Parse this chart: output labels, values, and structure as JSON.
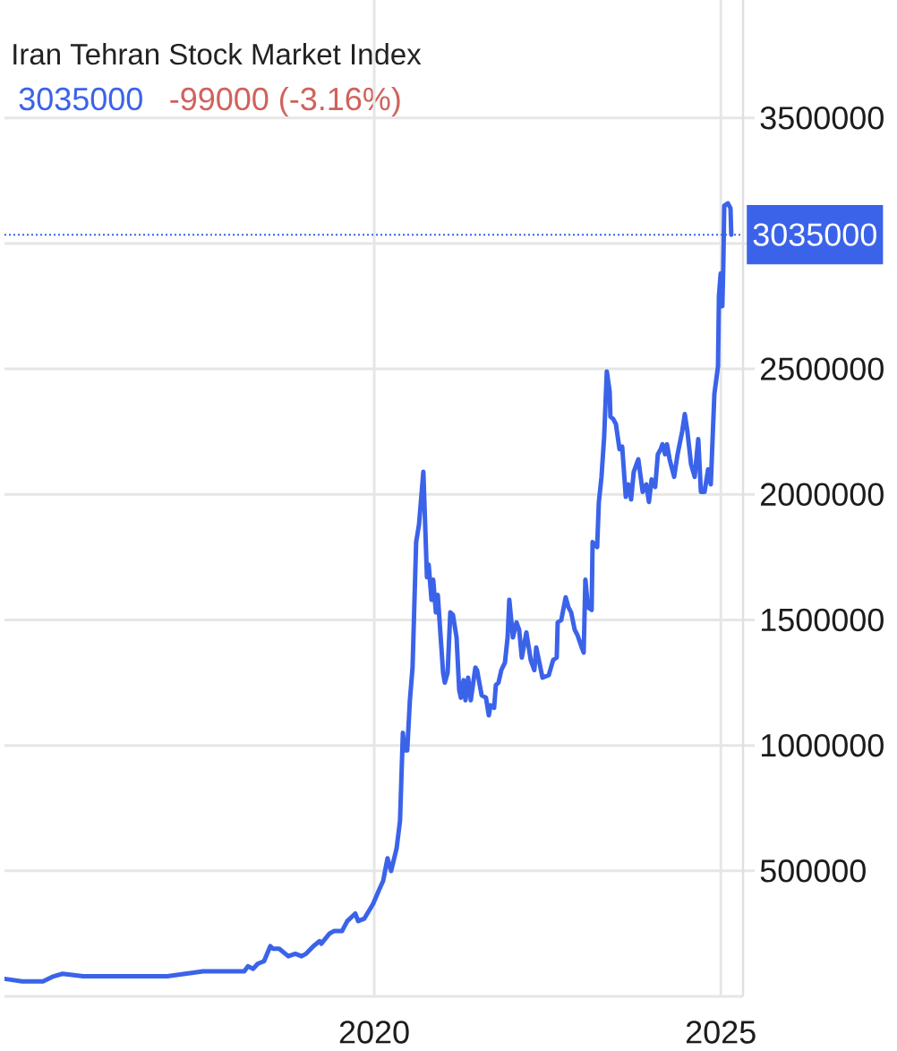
{
  "chart_data": {
    "type": "line",
    "title": "Iran Tehran Stock Market Index",
    "annotations": [
      "3035000",
      "-99000 (-3.16%)"
    ],
    "color": "#3b63e9",
    "x": [
      "2014-08-31",
      "2014-12-03",
      "2015-03-22",
      "2015-05-17",
      "2015-07-03",
      "2015-10-20",
      "2015-12-25",
      "2016-07-15",
      "2017-01-05",
      "2017-07-13",
      "2017-09-13",
      "2018-01-18",
      "2018-02-15",
      "2018-03-06",
      "2018-04-03",
      "2018-04-27",
      "2018-05-30",
      "2018-07-02",
      "2018-07-16",
      "2018-08-18",
      "2018-10-05",
      "2018-11-11",
      "2018-12-14",
      "2019-01-07",
      "2019-02-14",
      "2019-03-19",
      "2019-03-28",
      "2019-05-10",
      "2019-06-02",
      "2019-07-15",
      "2019-08-12",
      "2019-09-23",
      "2019-10-08",
      "2019-11-10",
      "2019-12-27",
      "2020-01-24",
      "2020-02-17",
      "2020-03-11",
      "2020-03-30",
      "2020-04-28",
      "2020-05-16",
      "2020-05-31",
      "2020-06-09",
      "2020-06-23",
      "2020-07-07",
      "2020-07-21",
      "2020-08-09",
      "2020-08-24",
      "2020-09-16",
      "2020-10-05",
      "2020-10-14",
      "2020-10-29",
      "2020-11-07",
      "2020-11-21",
      "2020-12-01",
      "2020-12-29",
      "2021-01-07",
      "2021-01-22",
      "2021-02-05",
      "2021-02-19",
      "2021-03-10",
      "2021-03-24",
      "2021-04-02",
      "2021-04-16",
      "2021-04-26",
      "2021-05-10",
      "2021-05-24",
      "2021-06-17",
      "2021-06-26",
      "2021-07-20",
      "2021-08-12",
      "2021-08-27",
      "2021-09-05",
      "2021-09-24",
      "2021-10-03",
      "2021-10-17",
      "2021-11-01",
      "2021-11-20",
      "2021-12-04",
      "2021-12-13",
      "2022-01-01",
      "2022-01-20",
      "2022-02-03",
      "2022-02-17",
      "2022-03-13",
      "2022-04-05",
      "2022-04-24",
      "2022-05-04",
      "2022-06-06",
      "2022-07-09",
      "2022-08-01",
      "2022-08-20",
      "2022-08-25",
      "2022-09-13",
      "2022-10-06",
      "2022-10-21",
      "2022-11-04",
      "2022-11-23",
      "2022-12-07",
      "2022-12-30",
      "2023-01-09",
      "2023-01-18",
      "2023-02-01",
      "2023-02-20",
      "2023-02-25",
      "2023-03-21",
      "2023-03-30",
      "2023-04-13",
      "2023-04-27",
      "2023-05-11",
      "2023-05-26",
      "2023-05-30",
      "2023-06-14",
      "2023-06-28",
      "2023-07-17",
      "2023-07-31",
      "2023-08-19",
      "2023-09-02",
      "2023-09-16",
      "2023-09-30",
      "2023-10-24",
      "2023-11-16",
      "2023-12-05",
      "2023-12-19",
      "2024-01-02",
      "2024-01-21",
      "2024-02-04",
      "2024-02-19",
      "2024-02-28",
      "2024-03-13",
      "2024-03-23",
      "2024-04-06",
      "2024-04-30",
      "2024-05-18",
      "2024-06-11",
      "2024-06-25",
      "2024-07-09",
      "2024-07-28",
      "2024-08-16",
      "2024-09-04",
      "2024-09-18",
      "2024-10-07",
      "2024-10-26",
      "2024-11-09",
      "2024-11-28",
      "2024-12-17",
      "2024-12-22",
      "2024-12-31",
      "2025-01-09",
      "2025-01-14",
      "2025-01-19",
      "2025-02-07",
      "2025-02-21",
      "2025-02-25"
    ],
    "values": [
      70000,
      60000,
      60000,
      80000,
      90000,
      80000,
      80000,
      80000,
      80000,
      100000,
      100000,
      100000,
      100000,
      120000,
      110000,
      130000,
      140000,
      200000,
      190000,
      190000,
      160000,
      170000,
      160000,
      170000,
      200000,
      220000,
      210000,
      250000,
      260000,
      260000,
      300000,
      330000,
      300000,
      310000,
      370000,
      420000,
      460000,
      550000,
      500000,
      590000,
      700000,
      1050000,
      980000,
      980000,
      1180000,
      1310000,
      1810000,
      1880000,
      2090000,
      1670000,
      1720000,
      1580000,
      1660000,
      1530000,
      1600000,
      1290000,
      1250000,
      1290000,
      1530000,
      1520000,
      1430000,
      1220000,
      1190000,
      1260000,
      1180000,
      1270000,
      1180000,
      1310000,
      1300000,
      1200000,
      1190000,
      1120000,
      1160000,
      1150000,
      1240000,
      1250000,
      1300000,
      1330000,
      1430000,
      1580000,
      1430000,
      1490000,
      1460000,
      1350000,
      1450000,
      1340000,
      1300000,
      1390000,
      1270000,
      1280000,
      1340000,
      1350000,
      1490000,
      1500000,
      1590000,
      1550000,
      1530000,
      1460000,
      1440000,
      1390000,
      1370000,
      1660000,
      1550000,
      1540000,
      1810000,
      1790000,
      1970000,
      2070000,
      2230000,
      2490000,
      2410000,
      2310000,
      2300000,
      2280000,
      2180000,
      2190000,
      1990000,
      2040000,
      1980000,
      2090000,
      2140000,
      2010000,
      2040000,
      1970000,
      2060000,
      2030000,
      2160000,
      2180000,
      2200000,
      2160000,
      2200000,
      2140000,
      2070000,
      2160000,
      2250000,
      2320000,
      2250000,
      2120000,
      2070000,
      2220000,
      2010000,
      2010000,
      2100000,
      2040000,
      2400000,
      2510000,
      2790000,
      2880000,
      2750000,
      2910000,
      3150000,
      3160000,
      3140000,
      3035000
    ],
    "xlim": [
      "2014-08-31",
      "2025-04-28"
    ],
    "ylim": [
      0,
      3970000
    ],
    "xticks": [
      "2020",
      "2025"
    ],
    "yticks": [
      500000,
      1000000,
      1500000,
      2000000,
      2500000,
      {
        "value": 3000000,
        "label": null
      },
      3500000
    ],
    "grid": true,
    "ref_lines": [
      {
        "axis": "y",
        "value": 3035000,
        "label": "3035000",
        "color": "#3b63e9",
        "line_style": "dotted"
      }
    ]
  }
}
